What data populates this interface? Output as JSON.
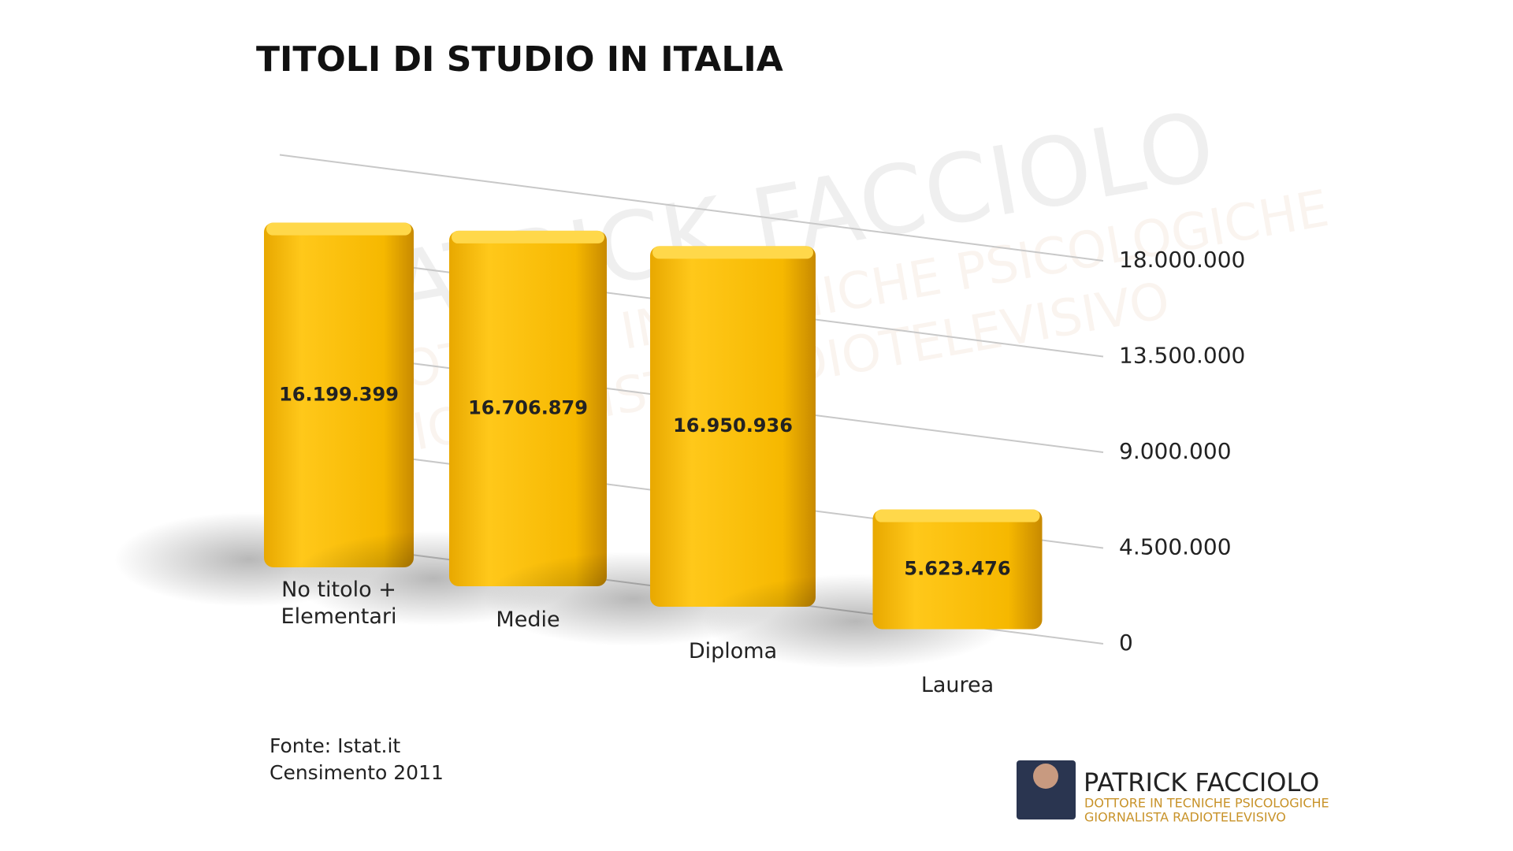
{
  "chart_data": {
    "type": "bar",
    "title": "TITOLI DI STUDIO IN ITALIA",
    "categories": [
      "No titolo + Elementari",
      "Medie",
      "Diploma",
      "Laurea"
    ],
    "values": [
      16199399,
      16706879,
      16950936,
      5623476
    ],
    "value_labels": [
      "16.199.399",
      "16.706.879",
      "16.950.936",
      "5.623.476"
    ],
    "color": "#f5b800",
    "ylim": [
      0,
      18000000
    ],
    "yticks": [
      0,
      {
        "value": 4500000,
        "label": "4.500.000"
      },
      {
        "value": 9000000,
        "label": "9.000.000"
      },
      {
        "value": 13500000,
        "label": "13.500.000"
      },
      {
        "value": 18000000,
        "label": "18.000.000"
      }
    ],
    "grid": true,
    "source": [
      "Fonte: Istat.it",
      "Censimento 2011"
    ]
  },
  "branding": {
    "name": "PATRICK FACCIOLO",
    "lines": [
      "DOTTORE IN TECNICHE PSICOLOGICHE",
      "GIORNALISTA RADIOTELEVISIVO"
    ]
  }
}
